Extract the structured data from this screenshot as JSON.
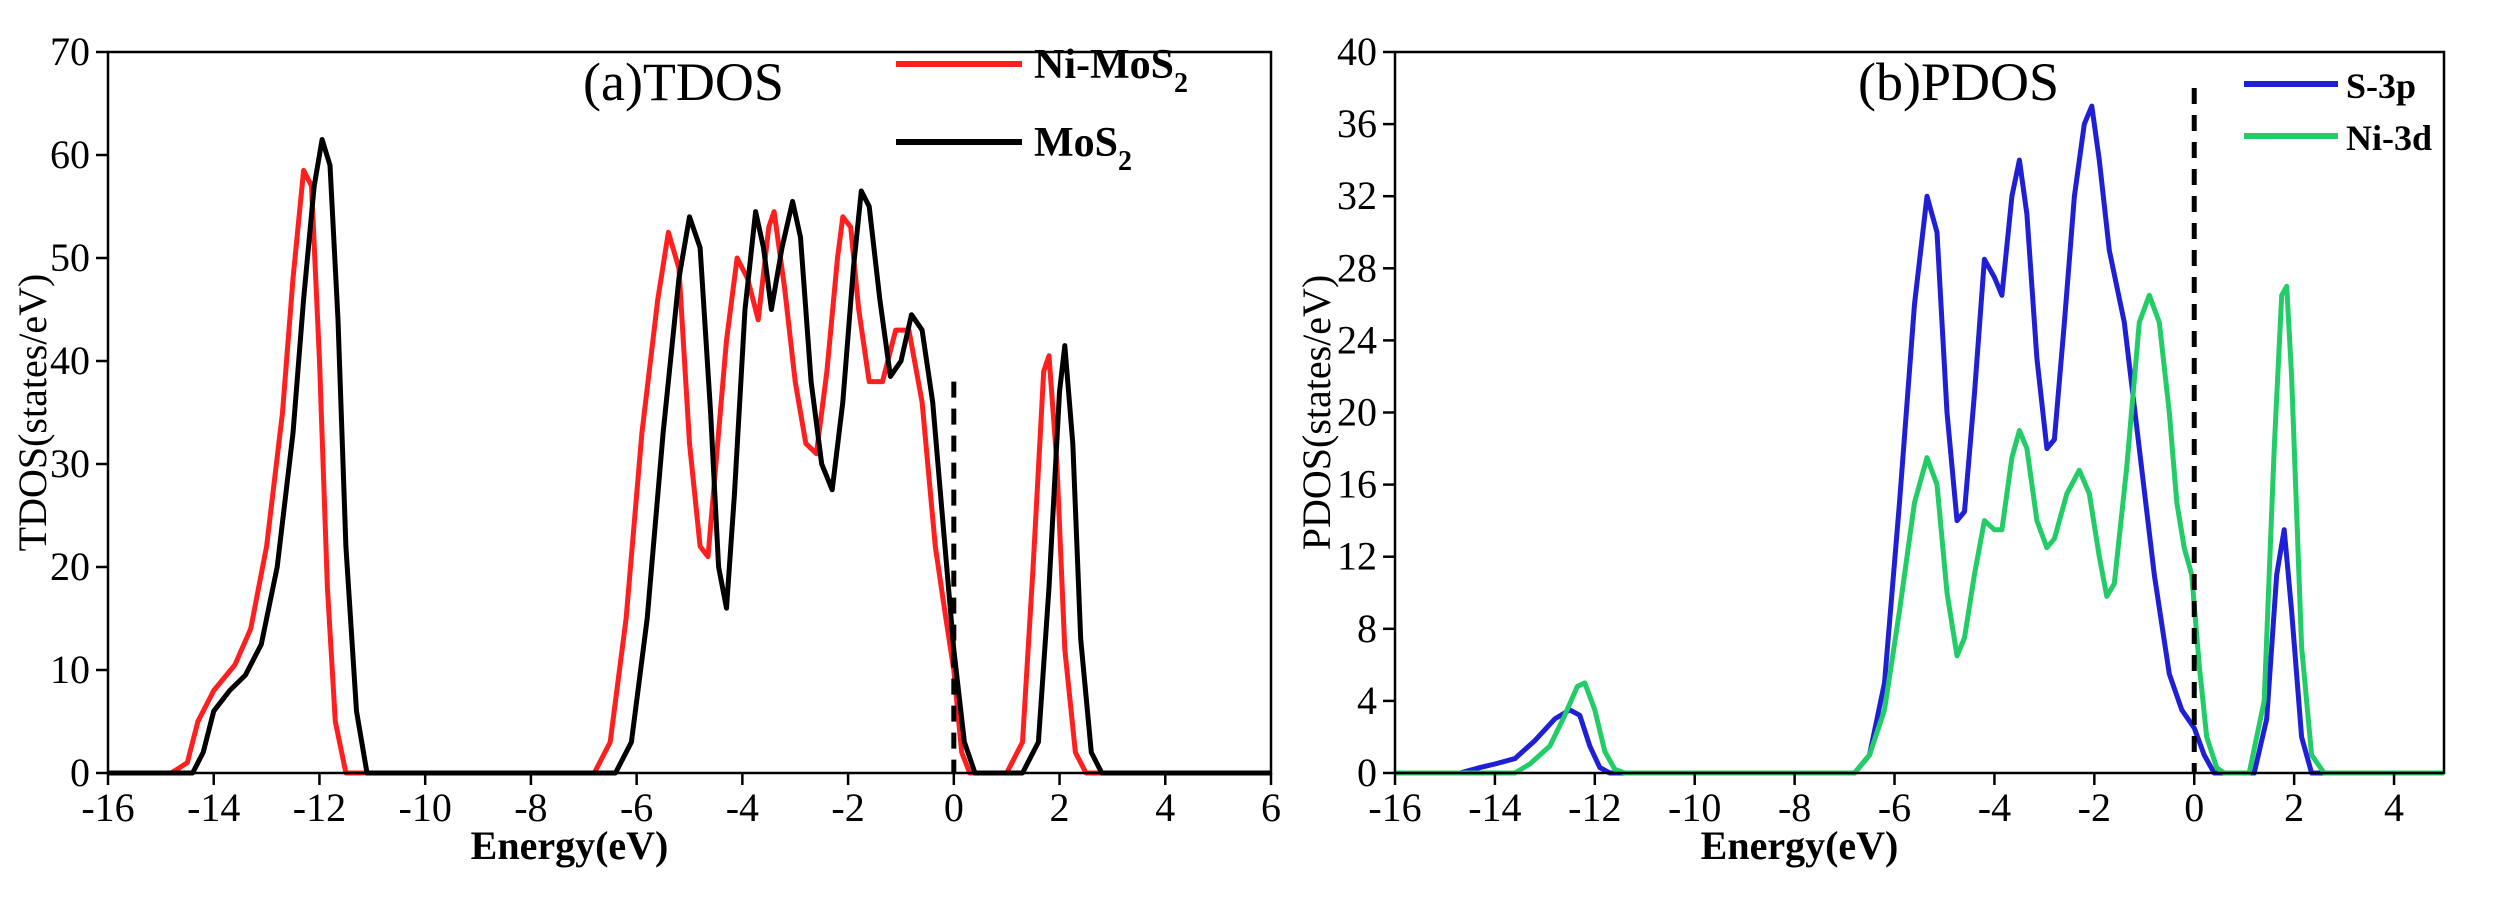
{
  "chart_data": [
    {
      "type": "line",
      "title": "(a)TDOS",
      "xlabel": "Energy(eV)",
      "ylabel": "TDOS(states/eV)",
      "xlim": [
        -16,
        6
      ],
      "ylim": [
        0,
        70
      ],
      "xticks": [
        -16,
        -14,
        -12,
        -10,
        -8,
        -6,
        -4,
        -2,
        0,
        2,
        4,
        6
      ],
      "yticks": [
        0,
        10,
        20,
        30,
        40,
        50,
        60,
        70
      ],
      "fermi_level": {
        "x": 0,
        "y_top": 38,
        "style": "dashed"
      },
      "legend_position": "top-right",
      "grid": false,
      "series": [
        {
          "name": "Ni-MoS2",
          "label_main": "Ni-MoS",
          "label_sub": "2",
          "color": "#ff1f1f",
          "points": [
            [
              -16,
              0
            ],
            [
              -14.8,
              0
            ],
            [
              -14.5,
              1
            ],
            [
              -14.3,
              5
            ],
            [
              -14.0,
              8
            ],
            [
              -13.6,
              10.5
            ],
            [
              -13.3,
              14
            ],
            [
              -13.0,
              22
            ],
            [
              -12.7,
              35
            ],
            [
              -12.5,
              48
            ],
            [
              -12.3,
              58.5
            ],
            [
              -12.15,
              57
            ],
            [
              -12.0,
              40
            ],
            [
              -11.85,
              18
            ],
            [
              -11.7,
              5
            ],
            [
              -11.5,
              0
            ],
            [
              -6.8,
              0
            ],
            [
              -6.5,
              3
            ],
            [
              -6.2,
              15
            ],
            [
              -5.9,
              33
            ],
            [
              -5.6,
              46
            ],
            [
              -5.4,
              52.5
            ],
            [
              -5.2,
              49
            ],
            [
              -5.0,
              32
            ],
            [
              -4.8,
              22
            ],
            [
              -4.65,
              21
            ],
            [
              -4.5,
              30
            ],
            [
              -4.3,
              42
            ],
            [
              -4.1,
              50
            ],
            [
              -3.9,
              48
            ],
            [
              -3.7,
              44
            ],
            [
              -3.5,
              53
            ],
            [
              -3.4,
              54.5
            ],
            [
              -3.2,
              47
            ],
            [
              -3.0,
              38
            ],
            [
              -2.8,
              32
            ],
            [
              -2.6,
              31
            ],
            [
              -2.4,
              39
            ],
            [
              -2.2,
              50
            ],
            [
              -2.1,
              54
            ],
            [
              -1.95,
              53
            ],
            [
              -1.8,
              45
            ],
            [
              -1.6,
              38
            ],
            [
              -1.35,
              38
            ],
            [
              -1.1,
              43
            ],
            [
              -0.85,
              43
            ],
            [
              -0.6,
              36
            ],
            [
              -0.35,
              22
            ],
            [
              -0.15,
              15
            ],
            [
              0.0,
              10
            ],
            [
              0.15,
              2
            ],
            [
              0.3,
              0
            ],
            [
              1.0,
              0
            ],
            [
              1.3,
              3
            ],
            [
              1.5,
              20
            ],
            [
              1.7,
              39
            ],
            [
              1.8,
              40.5
            ],
            [
              1.95,
              30
            ],
            [
              2.1,
              12
            ],
            [
              2.3,
              2
            ],
            [
              2.5,
              0
            ],
            [
              6,
              0
            ]
          ]
        },
        {
          "name": "MoS2",
          "label_main": "MoS",
          "label_sub": "2",
          "color": "#000000",
          "points": [
            [
              -16,
              0
            ],
            [
              -14.4,
              0
            ],
            [
              -14.2,
              2
            ],
            [
              -14.0,
              6
            ],
            [
              -13.7,
              8
            ],
            [
              -13.4,
              9.5
            ],
            [
              -13.1,
              12.5
            ],
            [
              -12.8,
              20
            ],
            [
              -12.5,
              33
            ],
            [
              -12.3,
              46
            ],
            [
              -12.1,
              57
            ],
            [
              -11.95,
              61.5
            ],
            [
              -11.8,
              59
            ],
            [
              -11.65,
              44
            ],
            [
              -11.5,
              22
            ],
            [
              -11.3,
              6
            ],
            [
              -11.1,
              0
            ],
            [
              -6.4,
              0
            ],
            [
              -6.1,
              3
            ],
            [
              -5.8,
              15
            ],
            [
              -5.5,
              33
            ],
            [
              -5.2,
              48
            ],
            [
              -5.0,
              54
            ],
            [
              -4.8,
              51
            ],
            [
              -4.6,
              35
            ],
            [
              -4.45,
              20
            ],
            [
              -4.3,
              16
            ],
            [
              -4.15,
              27
            ],
            [
              -3.95,
              45
            ],
            [
              -3.75,
              54.5
            ],
            [
              -3.6,
              51
            ],
            [
              -3.45,
              45
            ],
            [
              -3.25,
              51
            ],
            [
              -3.05,
              55.5
            ],
            [
              -2.9,
              52
            ],
            [
              -2.7,
              38
            ],
            [
              -2.5,
              30
            ],
            [
              -2.3,
              27.5
            ],
            [
              -2.1,
              36
            ],
            [
              -1.9,
              49
            ],
            [
              -1.75,
              56.5
            ],
            [
              -1.6,
              55
            ],
            [
              -1.4,
              46
            ],
            [
              -1.2,
              38.5
            ],
            [
              -1.0,
              40
            ],
            [
              -0.8,
              44.5
            ],
            [
              -0.6,
              43
            ],
            [
              -0.4,
              36
            ],
            [
              -0.2,
              24
            ],
            [
              0.0,
              12
            ],
            [
              0.2,
              3
            ],
            [
              0.4,
              0
            ],
            [
              1.3,
              0
            ],
            [
              1.6,
              3
            ],
            [
              1.8,
              18
            ],
            [
              2.0,
              37
            ],
            [
              2.1,
              41.5
            ],
            [
              2.25,
              32
            ],
            [
              2.4,
              13
            ],
            [
              2.6,
              2
            ],
            [
              2.8,
              0
            ],
            [
              6,
              0
            ]
          ]
        }
      ]
    },
    {
      "type": "line",
      "title": "(b)PDOS",
      "xlabel": "Energy(eV)",
      "ylabel": "PDOS(states/eV)",
      "xlim": [
        -16,
        5
      ],
      "ylim": [
        0,
        40
      ],
      "xticks": [
        -16,
        -14,
        -12,
        -10,
        -8,
        -6,
        -4,
        -2,
        0,
        2,
        4
      ],
      "yticks": [
        0,
        4,
        8,
        12,
        16,
        20,
        24,
        28,
        32,
        36,
        40
      ],
      "fermi_level": {
        "x": 0,
        "y_top": 38,
        "style": "dashed"
      },
      "legend_position": "top-right",
      "grid": false,
      "series": [
        {
          "name": "S-3p",
          "label_main": "S-3p",
          "label_sub": "",
          "color": "#1f1fd6",
          "points": [
            [
              -16,
              0
            ],
            [
              -14.7,
              0
            ],
            [
              -14.3,
              0.3
            ],
            [
              -14.0,
              0.5
            ],
            [
              -13.6,
              0.8
            ],
            [
              -13.2,
              1.8
            ],
            [
              -12.8,
              3.0
            ],
            [
              -12.5,
              3.5
            ],
            [
              -12.3,
              3.2
            ],
            [
              -12.1,
              1.5
            ],
            [
              -11.9,
              0.3
            ],
            [
              -11.7,
              0
            ],
            [
              -6.8,
              0
            ],
            [
              -6.5,
              1
            ],
            [
              -6.2,
              5
            ],
            [
              -5.9,
              15
            ],
            [
              -5.6,
              26
            ],
            [
              -5.35,
              32
            ],
            [
              -5.15,
              30
            ],
            [
              -4.95,
              20
            ],
            [
              -4.75,
              14
            ],
            [
              -4.6,
              14.5
            ],
            [
              -4.4,
              21
            ],
            [
              -4.2,
              28.5
            ],
            [
              -4.0,
              27.5
            ],
            [
              -3.85,
              26.5
            ],
            [
              -3.65,
              32
            ],
            [
              -3.5,
              34
            ],
            [
              -3.35,
              31
            ],
            [
              -3.15,
              23
            ],
            [
              -2.95,
              18
            ],
            [
              -2.8,
              18.5
            ],
            [
              -2.6,
              25
            ],
            [
              -2.4,
              32
            ],
            [
              -2.2,
              36
            ],
            [
              -2.05,
              37
            ],
            [
              -1.9,
              34
            ],
            [
              -1.7,
              29
            ],
            [
              -1.4,
              25
            ],
            [
              -1.1,
              18
            ],
            [
              -0.8,
              11
            ],
            [
              -0.5,
              5.5
            ],
            [
              -0.25,
              3.5
            ],
            [
              0.0,
              2.5
            ],
            [
              0.2,
              1
            ],
            [
              0.4,
              0
            ],
            [
              1.2,
              0
            ],
            [
              1.45,
              3
            ],
            [
              1.65,
              11
            ],
            [
              1.8,
              13.5
            ],
            [
              1.95,
              9
            ],
            [
              2.15,
              2
            ],
            [
              2.35,
              0
            ],
            [
              5,
              0
            ]
          ]
        },
        {
          "name": "Ni-3d",
          "label_main": "Ni-3d",
          "label_sub": "",
          "color": "#22cc66",
          "points": [
            [
              -16,
              0
            ],
            [
              -13.6,
              0
            ],
            [
              -13.3,
              0.5
            ],
            [
              -12.9,
              1.5
            ],
            [
              -12.6,
              3.2
            ],
            [
              -12.35,
              4.8
            ],
            [
              -12.2,
              5.0
            ],
            [
              -12.0,
              3.5
            ],
            [
              -11.8,
              1.2
            ],
            [
              -11.6,
              0.2
            ],
            [
              -11.4,
              0
            ],
            [
              -6.8,
              0
            ],
            [
              -6.5,
              1
            ],
            [
              -6.2,
              3.5
            ],
            [
              -5.9,
              9
            ],
            [
              -5.6,
              15
            ],
            [
              -5.35,
              17.5
            ],
            [
              -5.15,
              16
            ],
            [
              -4.95,
              10
            ],
            [
              -4.75,
              6.5
            ],
            [
              -4.6,
              7.5
            ],
            [
              -4.4,
              11
            ],
            [
              -4.2,
              14
            ],
            [
              -4.0,
              13.5
            ],
            [
              -3.85,
              13.5
            ],
            [
              -3.65,
              17.5
            ],
            [
              -3.5,
              19
            ],
            [
              -3.35,
              18
            ],
            [
              -3.15,
              14
            ],
            [
              -2.95,
              12.5
            ],
            [
              -2.8,
              13
            ],
            [
              -2.55,
              15.5
            ],
            [
              -2.3,
              16.8
            ],
            [
              -2.1,
              15.5
            ],
            [
              -1.9,
              12
            ],
            [
              -1.75,
              9.8
            ],
            [
              -1.6,
              10.5
            ],
            [
              -1.35,
              17
            ],
            [
              -1.1,
              25
            ],
            [
              -0.9,
              26.5
            ],
            [
              -0.7,
              25
            ],
            [
              -0.5,
              20
            ],
            [
              -0.35,
              15
            ],
            [
              -0.2,
              12.5
            ],
            [
              -0.05,
              11
            ],
            [
              0.1,
              6
            ],
            [
              0.25,
              2
            ],
            [
              0.45,
              0.3
            ],
            [
              0.6,
              0
            ],
            [
              1.1,
              0
            ],
            [
              1.4,
              4
            ],
            [
              1.6,
              18
            ],
            [
              1.75,
              26.5
            ],
            [
              1.85,
              27
            ],
            [
              1.95,
              22
            ],
            [
              2.15,
              7
            ],
            [
              2.35,
              1
            ],
            [
              2.6,
              0
            ],
            [
              5,
              0
            ]
          ]
        }
      ]
    }
  ]
}
